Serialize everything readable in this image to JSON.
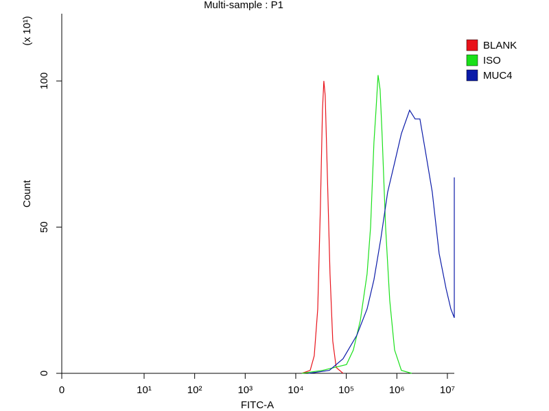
{
  "chart_data": {
    "type": "line",
    "title": "Multi-sample : P1",
    "xlabel": "FITC-A",
    "ylabel": "Count",
    "ylabel_multiplier": "(x 10¹)",
    "xscale": "log",
    "xlim": [
      0,
      13700000
    ],
    "xticks": [
      0,
      {
        "value": 10,
        "label": "10¹"
      },
      {
        "value": 100,
        "label": "10²"
      },
      {
        "value": 1000,
        "label": "10³"
      },
      {
        "value": 10000,
        "label": "10⁴"
      },
      {
        "value": 100000,
        "label": "10⁵"
      },
      {
        "value": 1000000,
        "label": "10⁶"
      },
      {
        "value": 10000000,
        "label": "10⁷"
      }
    ],
    "ylim": [
      0,
      123
    ],
    "yticks": [
      0,
      50,
      100
    ],
    "legend": "right",
    "series": [
      {
        "name": "BLANK",
        "color": "#e8121a",
        "x": [
          13200,
          19300,
          23200,
          27200,
          30800,
          33800,
          36000,
          38300,
          42100,
          47700,
          54000,
          63200,
          86400
        ],
        "values": [
          0,
          1,
          6,
          22,
          57,
          90,
          100,
          95,
          69,
          34,
          11,
          2,
          0
        ]
      },
      {
        "name": "ISO",
        "color": "#19e019",
        "x": [
          13200,
          33800,
          101000,
          138000,
          189000,
          258000,
          302000,
          352000,
          387000,
          425000,
          467000,
          513000,
          600000,
          724000,
          902000,
          1230000,
          1970000
        ],
        "values": [
          0,
          1,
          3,
          8,
          18,
          34,
          50,
          79,
          90,
          102,
          97,
          81,
          50,
          25,
          8,
          1,
          0
        ]
      },
      {
        "name": "MUC4",
        "color": "#0a1aa8",
        "x": [
          18100,
          46200,
          86400,
          161000,
          258000,
          352000,
          482000,
          659000,
          902000,
          1230000,
          1790000,
          2300000,
          2860000,
          3670000,
          5020000,
          6870000,
          9400000,
          11700000,
          13700000,
          13700000
        ],
        "values": [
          0,
          1,
          5,
          13,
          22,
          32,
          46,
          62,
          72,
          82,
          90,
          87,
          87,
          76,
          62,
          41,
          29,
          22,
          19,
          67
        ]
      }
    ]
  }
}
